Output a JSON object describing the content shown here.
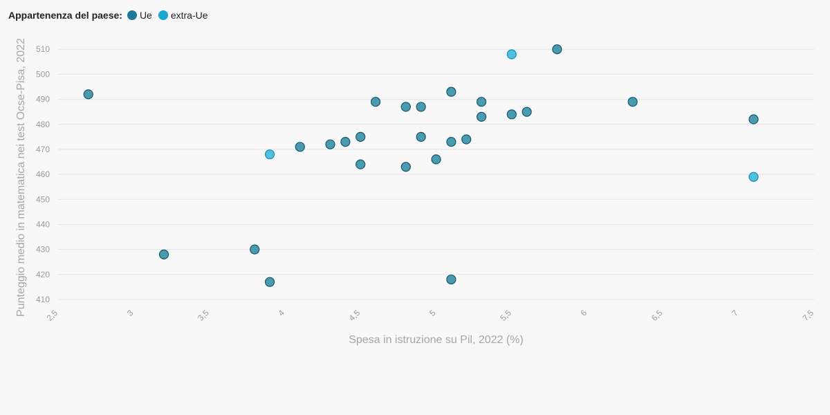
{
  "legend": {
    "title": "Appartenenza del paese:",
    "items": [
      {
        "label": "Ue",
        "color": "#1f7a99"
      },
      {
        "label": "extra-Ue",
        "color": "#1aa6d3"
      }
    ]
  },
  "chart_data": {
    "type": "scatter",
    "xlabel": "Spesa in istruzione su Pil, 2022 (%)",
    "ylabel": "Punteggio medio in matematica nei test Ocse-Pisa, 2022",
    "xlim": [
      2.5,
      7.5
    ],
    "ylim": [
      410,
      512
    ],
    "x_ticks": [
      "2,5",
      "3",
      "3,5",
      "4",
      "4,5",
      "5",
      "5,5",
      "6",
      "6,5",
      "7",
      "7,5"
    ],
    "y_ticks": [
      "410",
      "420",
      "430",
      "440",
      "450",
      "460",
      "470",
      "480",
      "490",
      "500",
      "510"
    ],
    "grid": true,
    "legend_position": "top-left",
    "series": [
      {
        "name": "Ue",
        "fill": "#4a9bb0",
        "stroke": "#16566b",
        "points": [
          [
            2.7,
            492
          ],
          [
            3.2,
            428
          ],
          [
            3.8,
            430
          ],
          [
            3.9,
            417
          ],
          [
            4.1,
            471
          ],
          [
            4.3,
            472
          ],
          [
            4.4,
            473
          ],
          [
            4.5,
            475
          ],
          [
            4.5,
            464
          ],
          [
            4.6,
            489
          ],
          [
            4.8,
            487
          ],
          [
            4.8,
            463
          ],
          [
            4.9,
            487
          ],
          [
            4.9,
            475
          ],
          [
            5.0,
            466
          ],
          [
            5.1,
            493
          ],
          [
            5.1,
            473
          ],
          [
            5.1,
            418
          ],
          [
            5.2,
            474
          ],
          [
            5.3,
            489
          ],
          [
            5.3,
            483
          ],
          [
            5.5,
            484
          ],
          [
            5.6,
            485
          ],
          [
            5.8,
            510
          ],
          [
            6.3,
            489
          ],
          [
            7.1,
            482
          ]
        ]
      },
      {
        "name": "extra-Ue",
        "fill": "#4fc0df",
        "stroke": "#1d8bb0",
        "points": [
          [
            3.9,
            468
          ],
          [
            5.5,
            508
          ],
          [
            7.1,
            459
          ]
        ]
      }
    ]
  }
}
